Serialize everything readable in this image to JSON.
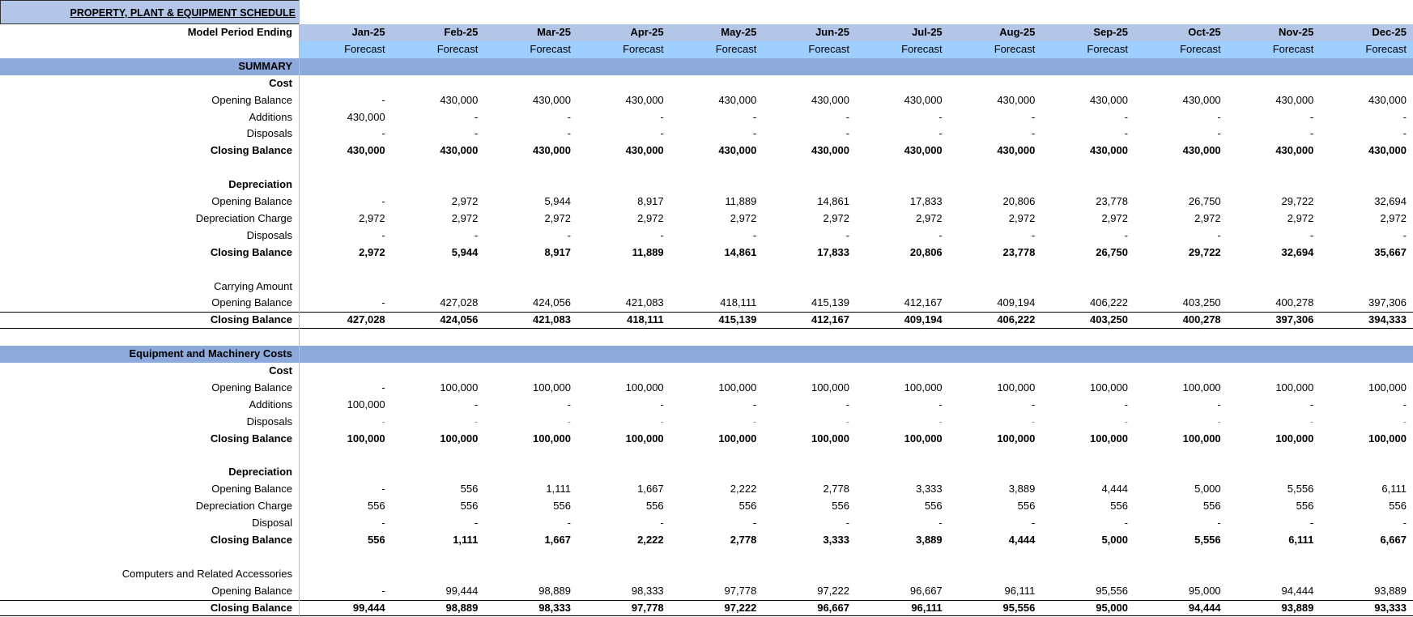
{
  "title": "PROPERTY, PLANT & EQUIPMENT  SCHEDULE",
  "period_label": "Model Period Ending",
  "months": [
    "Jan-25",
    "Feb-25",
    "Mar-25",
    "Apr-25",
    "May-25",
    "Jun-25",
    "Jul-25",
    "Aug-25",
    "Sep-25",
    "Oct-25",
    "Nov-25",
    "Dec-25"
  ],
  "forecast": [
    "Forecast",
    "Forecast",
    "Forecast",
    "Forecast",
    "Forecast",
    "Forecast",
    "Forecast",
    "Forecast",
    "Forecast",
    "Forecast",
    "Forecast",
    "Forecast"
  ],
  "rows": [
    {
      "label": "SUMMARY",
      "style": "section"
    },
    {
      "label": "Cost",
      "style": "heading"
    },
    {
      "label": "Opening Balance",
      "values": [
        "-",
        "430,000",
        "430,000",
        "430,000",
        "430,000",
        "430,000",
        "430,000",
        "430,000",
        "430,000",
        "430,000",
        "430,000",
        "430,000"
      ]
    },
    {
      "label": "Additions",
      "values": [
        "430,000",
        "-",
        "-",
        "-",
        "-",
        "-",
        "-",
        "-",
        "-",
        "-",
        "-",
        "-"
      ]
    },
    {
      "label": "Disposals",
      "values": [
        "-",
        "-",
        "-",
        "-",
        "-",
        "-",
        "-",
        "-",
        "-",
        "-",
        "-",
        "-"
      ]
    },
    {
      "label": "Closing Balance",
      "style": "bold",
      "values": [
        "430,000",
        "430,000",
        "430,000",
        "430,000",
        "430,000",
        "430,000",
        "430,000",
        "430,000",
        "430,000",
        "430,000",
        "430,000",
        "430,000"
      ]
    },
    null,
    {
      "label": "Depreciation",
      "style": "heading"
    },
    {
      "label": "Opening Balance",
      "values": [
        "-",
        "2,972",
        "5,944",
        "8,917",
        "11,889",
        "14,861",
        "17,833",
        "20,806",
        "23,778",
        "26,750",
        "29,722",
        "32,694"
      ]
    },
    {
      "label": "Depreciation Charge",
      "values": [
        "2,972",
        "2,972",
        "2,972",
        "2,972",
        "2,972",
        "2,972",
        "2,972",
        "2,972",
        "2,972",
        "2,972",
        "2,972",
        "2,972"
      ]
    },
    {
      "label": "Disposals",
      "values": [
        "-",
        "-",
        "-",
        "-",
        "-",
        "-",
        "-",
        "-",
        "-",
        "-",
        "-",
        "-"
      ]
    },
    {
      "label": "Closing Balance",
      "style": "bold",
      "values": [
        "2,972",
        "5,944",
        "8,917",
        "11,889",
        "14,861",
        "17,833",
        "20,806",
        "23,778",
        "26,750",
        "29,722",
        "32,694",
        "35,667"
      ]
    },
    null,
    {
      "label": "Carrying Amount"
    },
    {
      "label": "Opening Balance",
      "values": [
        "-",
        "427,028",
        "424,056",
        "421,083",
        "418,111",
        "415,139",
        "412,167",
        "409,194",
        "406,222",
        "403,250",
        "400,278",
        "397,306"
      ]
    },
    {
      "label": "Closing Balance",
      "style": "total",
      "values": [
        "427,028",
        "424,056",
        "421,083",
        "418,111",
        "415,139",
        "412,167",
        "409,194",
        "406,222",
        "403,250",
        "400,278",
        "397,306",
        "394,333"
      ]
    },
    null,
    {
      "label": "Equipment and Machinery Costs",
      "style": "section"
    },
    {
      "label": "Cost",
      "style": "heading"
    },
    {
      "label": "Opening Balance",
      "values": [
        "-",
        "100,000",
        "100,000",
        "100,000",
        "100,000",
        "100,000",
        "100,000",
        "100,000",
        "100,000",
        "100,000",
        "100,000",
        "100,000"
      ]
    },
    {
      "label": "Additions",
      "values": [
        "100,000",
        "-",
        "-",
        "-",
        "-",
        "-",
        "-",
        "-",
        "-",
        "-",
        "-",
        "-"
      ]
    },
    {
      "label": "Disposals",
      "style": "muted",
      "values": [
        "-",
        "-",
        "-",
        "-",
        "-",
        "-",
        "-",
        "-",
        "-",
        "-",
        "-",
        "-"
      ]
    },
    {
      "label": "Closing Balance",
      "style": "bold",
      "values": [
        "100,000",
        "100,000",
        "100,000",
        "100,000",
        "100,000",
        "100,000",
        "100,000",
        "100,000",
        "100,000",
        "100,000",
        "100,000",
        "100,000"
      ]
    },
    null,
    {
      "label": "Depreciation",
      "style": "heading"
    },
    {
      "label": "Opening Balance",
      "values": [
        "-",
        "556",
        "1,111",
        "1,667",
        "2,222",
        "2,778",
        "3,333",
        "3,889",
        "4,444",
        "5,000",
        "5,556",
        "6,111"
      ]
    },
    {
      "label": "Depreciation Charge",
      "values": [
        "556",
        "556",
        "556",
        "556",
        "556",
        "556",
        "556",
        "556",
        "556",
        "556",
        "556",
        "556"
      ]
    },
    {
      "label": "Disposal",
      "values": [
        "-",
        "-",
        "-",
        "-",
        "-",
        "-",
        "-",
        "-",
        "-",
        "-",
        "-",
        "-"
      ]
    },
    {
      "label": "Closing Balance",
      "style": "bold",
      "values": [
        "556",
        "1,111",
        "1,667",
        "2,222",
        "2,778",
        "3,333",
        "3,889",
        "4,444",
        "5,000",
        "5,556",
        "6,111",
        "6,667"
      ]
    },
    null,
    {
      "label": "Computers and Related Accessories"
    },
    {
      "label": "Opening Balance",
      "values": [
        "-",
        "99,444",
        "98,889",
        "98,333",
        "97,778",
        "97,222",
        "96,667",
        "96,111",
        "95,556",
        "95,000",
        "94,444",
        "93,889"
      ]
    },
    {
      "label": "Closing Balance",
      "style": "total",
      "values": [
        "99,444",
        "98,889",
        "98,333",
        "97,778",
        "97,222",
        "96,667",
        "96,111",
        "95,556",
        "95,000",
        "94,444",
        "93,889",
        "93,333"
      ]
    }
  ]
}
